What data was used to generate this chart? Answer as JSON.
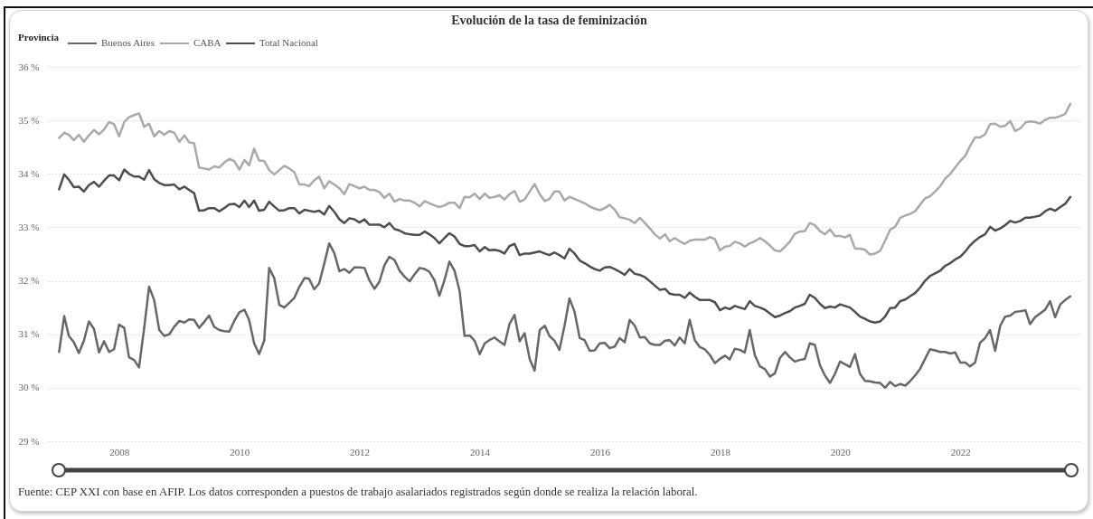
{
  "chart_data": {
    "type": "line",
    "title": "Evolución de la tasa de feminización",
    "legend_title": "Provincia",
    "legend": "top left",
    "grid": "y",
    "annotations": [
      "Fuente: CEP XXI con base en AFIP. Los datos corresponden a puestos de trabajo asalariados registrados según donde se realiza la relación laboral."
    ],
    "xlim": [
      "2006-10-25",
      "2024-01-01"
    ],
    "xticks": [
      "2008",
      "2010",
      "2012",
      "2014",
      "2016",
      "2018",
      "2020",
      "2022"
    ],
    "ylim": [
      29,
      36
    ],
    "yticks": [
      {
        "value": 29,
        "label": "29 %"
      },
      {
        "value": 30,
        "label": "30 %"
      },
      {
        "value": 31,
        "label": "31 %"
      },
      {
        "value": 32,
        "label": "32 %"
      },
      {
        "value": 33,
        "label": "33 %"
      },
      {
        "value": 34,
        "label": "34 %"
      },
      {
        "value": 35,
        "label": "35 %"
      },
      {
        "value": 36,
        "label": "36 %"
      }
    ],
    "x": [
      "2007-01",
      "2007-02",
      "2007-03",
      "2007-04",
      "2007-05",
      "2007-06",
      "2007-07",
      "2007-08",
      "2007-09",
      "2007-10",
      "2007-11",
      "2007-12",
      "2008-01",
      "2008-02",
      "2008-03",
      "2008-04",
      "2008-05",
      "2008-06",
      "2008-07",
      "2008-08",
      "2008-09",
      "2008-10",
      "2008-11",
      "2008-12",
      "2009-01",
      "2009-02",
      "2009-03",
      "2009-04",
      "2009-05",
      "2009-06",
      "2009-07",
      "2009-08",
      "2009-09",
      "2009-10",
      "2009-11",
      "2009-12",
      "2010-01",
      "2010-02",
      "2010-03",
      "2010-04",
      "2010-05",
      "2010-06",
      "2010-07",
      "2010-08",
      "2010-09",
      "2010-10",
      "2010-11",
      "2010-12",
      "2011-01",
      "2011-02",
      "2011-03",
      "2011-04",
      "2011-05",
      "2011-06",
      "2011-07",
      "2011-08",
      "2011-09",
      "2011-10",
      "2011-11",
      "2011-12",
      "2012-01",
      "2012-02",
      "2012-03",
      "2012-04",
      "2012-05",
      "2012-06",
      "2012-07",
      "2012-08",
      "2012-09",
      "2012-10",
      "2012-11",
      "2012-12",
      "2013-01",
      "2013-02",
      "2013-03",
      "2013-04",
      "2013-05",
      "2013-06",
      "2013-07",
      "2013-08",
      "2013-09",
      "2013-10",
      "2013-11",
      "2013-12",
      "2014-01",
      "2014-02",
      "2014-03",
      "2014-04",
      "2014-05",
      "2014-06",
      "2014-07",
      "2014-08",
      "2014-09",
      "2014-10",
      "2014-11",
      "2014-12",
      "2015-01",
      "2015-02",
      "2015-03",
      "2015-04",
      "2015-05",
      "2015-06",
      "2015-07",
      "2015-08",
      "2015-09",
      "2015-10",
      "2015-11",
      "2015-12",
      "2016-01",
      "2016-02",
      "2016-03",
      "2016-04",
      "2016-05",
      "2016-06",
      "2016-07",
      "2016-08",
      "2016-09",
      "2016-10",
      "2016-11",
      "2016-12",
      "2017-01",
      "2017-02",
      "2017-03",
      "2017-04",
      "2017-05",
      "2017-06",
      "2017-07",
      "2017-08",
      "2017-09",
      "2017-10",
      "2017-11",
      "2017-12",
      "2018-01",
      "2018-02",
      "2018-03",
      "2018-04",
      "2018-05",
      "2018-06",
      "2018-07",
      "2018-08",
      "2018-09",
      "2018-10",
      "2018-11",
      "2018-12",
      "2019-01",
      "2019-02",
      "2019-03",
      "2019-04",
      "2019-05",
      "2019-06",
      "2019-07",
      "2019-08",
      "2019-09",
      "2019-10",
      "2019-11",
      "2019-12",
      "2020-01",
      "2020-02",
      "2020-03",
      "2020-04",
      "2020-05",
      "2020-06",
      "2020-07",
      "2020-08",
      "2020-09",
      "2020-10",
      "2020-11",
      "2020-12",
      "2021-01",
      "2021-02",
      "2021-03",
      "2021-04",
      "2021-05",
      "2021-06",
      "2021-07",
      "2021-08",
      "2021-09",
      "2021-10",
      "2021-11",
      "2021-12",
      "2022-01",
      "2022-02",
      "2022-03",
      "2022-04",
      "2022-05",
      "2022-06",
      "2022-07",
      "2022-08",
      "2022-09",
      "2022-10",
      "2022-11",
      "2022-12",
      "2023-01",
      "2023-02",
      "2023-03",
      "2023-04",
      "2023-05",
      "2023-06",
      "2023-07",
      "2023-08",
      "2023-09",
      "2023-10",
      "2023-11"
    ],
    "series": [
      {
        "name": "Buenos Aires",
        "color": "#676767",
        "values": [
          30.67,
          31.34,
          30.97,
          30.85,
          30.65,
          30.88,
          31.24,
          31.1,
          30.66,
          30.87,
          30.67,
          30.72,
          31.18,
          31.12,
          30.57,
          30.52,
          30.38,
          31.11,
          31.89,
          31.64,
          31.08,
          30.97,
          31.0,
          31.14,
          31.25,
          31.22,
          31.28,
          31.27,
          31.12,
          31.23,
          31.35,
          31.14,
          31.08,
          31.06,
          31.05,
          31.25,
          31.41,
          31.46,
          31.27,
          30.83,
          30.63,
          30.88,
          32.24,
          32.05,
          31.55,
          31.5,
          31.59,
          31.68,
          31.89,
          32.05,
          32.04,
          31.84,
          31.95,
          32.32,
          32.7,
          32.52,
          32.18,
          32.22,
          32.15,
          32.25,
          32.25,
          32.24,
          32.01,
          31.85,
          31.98,
          32.29,
          32.45,
          32.39,
          32.19,
          32.08,
          31.99,
          32.12,
          32.24,
          32.22,
          32.17,
          32.01,
          31.72,
          32.01,
          32.36,
          32.19,
          31.81,
          30.97,
          30.98,
          30.88,
          30.63,
          30.83,
          30.89,
          30.94,
          30.87,
          30.8,
          31.19,
          31.36,
          30.87,
          31.02,
          30.54,
          30.32,
          31.08,
          31.16,
          30.97,
          30.88,
          30.71,
          31.16,
          31.67,
          31.42,
          30.93,
          30.89,
          30.69,
          30.7,
          30.83,
          30.84,
          30.74,
          30.77,
          30.93,
          30.85,
          31.27,
          31.16,
          30.94,
          30.95,
          30.83,
          30.8,
          30.8,
          30.88,
          30.89,
          30.79,
          30.94,
          30.83,
          31.27,
          30.89,
          30.76,
          30.72,
          30.61,
          30.46,
          30.54,
          30.6,
          30.53,
          30.73,
          30.71,
          30.66,
          31.08,
          30.61,
          30.4,
          30.35,
          30.21,
          30.27,
          30.56,
          30.67,
          30.57,
          30.49,
          30.52,
          30.54,
          30.83,
          30.8,
          30.42,
          30.23,
          30.09,
          30.26,
          30.49,
          30.44,
          30.39,
          30.63,
          30.26,
          30.13,
          30.12,
          30.1,
          30.09,
          30.0,
          30.11,
          30.03,
          30.07,
          30.04,
          30.12,
          30.23,
          30.35,
          30.54,
          30.72,
          30.7,
          30.67,
          30.67,
          30.64,
          30.66,
          30.47,
          30.47,
          30.4,
          30.47,
          30.84,
          30.93,
          31.08,
          30.69,
          31.16,
          31.33,
          31.35,
          31.42,
          31.43,
          31.45,
          31.19,
          31.32,
          31.39,
          31.46,
          31.62,
          31.32,
          31.56,
          31.64,
          31.71
        ]
      },
      {
        "name": "CABA",
        "color": "#a9a9a9",
        "values": [
          34.67,
          34.77,
          34.73,
          34.63,
          34.73,
          34.6,
          34.72,
          34.82,
          34.74,
          34.83,
          34.97,
          34.93,
          34.7,
          34.97,
          35.06,
          35.1,
          35.13,
          34.88,
          34.94,
          34.7,
          34.8,
          34.73,
          34.8,
          34.77,
          34.6,
          34.72,
          34.59,
          34.57,
          34.12,
          34.1,
          34.08,
          34.14,
          34.12,
          34.21,
          34.28,
          34.24,
          34.08,
          34.26,
          34.16,
          34.47,
          34.25,
          34.24,
          34.07,
          33.99,
          34.07,
          34.15,
          34.1,
          34.03,
          33.8,
          33.8,
          33.77,
          33.88,
          33.95,
          33.73,
          33.86,
          33.8,
          33.73,
          33.62,
          33.81,
          33.77,
          33.73,
          33.76,
          33.7,
          33.7,
          33.66,
          33.55,
          33.63,
          33.48,
          33.53,
          33.5,
          33.5,
          33.46,
          33.39,
          33.49,
          33.45,
          33.41,
          33.38,
          33.41,
          33.46,
          33.46,
          33.36,
          33.57,
          33.56,
          33.63,
          33.53,
          33.63,
          33.55,
          33.57,
          33.6,
          33.52,
          33.62,
          33.68,
          33.48,
          33.52,
          33.67,
          33.81,
          33.62,
          33.49,
          33.53,
          33.67,
          33.67,
          33.5,
          33.57,
          33.53,
          33.49,
          33.45,
          33.39,
          33.35,
          33.32,
          33.36,
          33.42,
          33.33,
          33.19,
          33.17,
          33.14,
          33.08,
          33.18,
          33.08,
          32.98,
          32.87,
          32.79,
          32.87,
          32.74,
          32.8,
          32.74,
          32.69,
          32.75,
          32.77,
          32.77,
          32.77,
          32.82,
          32.78,
          32.57,
          32.64,
          32.65,
          32.73,
          32.7,
          32.64,
          32.7,
          32.74,
          32.8,
          32.74,
          32.66,
          32.57,
          32.55,
          32.64,
          32.73,
          32.88,
          32.92,
          32.93,
          33.08,
          33.04,
          32.93,
          32.87,
          32.96,
          32.84,
          32.84,
          32.81,
          32.86,
          32.6,
          32.6,
          32.58,
          32.49,
          32.51,
          32.56,
          32.75,
          32.96,
          33.01,
          33.18,
          33.22,
          33.25,
          33.3,
          33.42,
          33.54,
          33.58,
          33.67,
          33.77,
          33.91,
          34.0,
          34.12,
          34.24,
          34.34,
          34.52,
          34.68,
          34.68,
          34.74,
          34.93,
          34.94,
          34.88,
          34.9,
          34.99,
          34.8,
          34.85,
          34.96,
          34.98,
          34.97,
          34.94,
          35.01,
          35.05,
          35.05,
          35.08,
          35.12,
          35.31
        ]
      },
      {
        "name": "Total Nacional",
        "color": "#4e4e4e",
        "values": [
          33.71,
          33.99,
          33.89,
          33.75,
          33.76,
          33.67,
          33.79,
          33.85,
          33.76,
          33.87,
          33.97,
          33.97,
          33.88,
          34.08,
          34.0,
          33.95,
          33.95,
          33.89,
          34.07,
          33.9,
          33.83,
          33.79,
          33.79,
          33.8,
          33.71,
          33.76,
          33.7,
          33.64,
          33.31,
          33.32,
          33.36,
          33.36,
          33.3,
          33.36,
          33.43,
          33.44,
          33.38,
          33.5,
          33.38,
          33.5,
          33.31,
          33.33,
          33.48,
          33.39,
          33.31,
          33.32,
          33.36,
          33.36,
          33.26,
          33.33,
          33.31,
          33.29,
          33.31,
          33.24,
          33.4,
          33.29,
          33.15,
          33.08,
          33.17,
          33.15,
          33.09,
          33.15,
          33.05,
          33.05,
          33.05,
          33.0,
          33.08,
          32.97,
          32.94,
          32.89,
          32.87,
          32.86,
          32.86,
          32.92,
          32.87,
          32.8,
          32.7,
          32.8,
          32.89,
          32.83,
          32.69,
          32.65,
          32.65,
          32.67,
          32.55,
          32.63,
          32.57,
          32.58,
          32.56,
          32.51,
          32.65,
          32.69,
          32.48,
          32.51,
          32.51,
          32.53,
          32.55,
          32.51,
          32.48,
          32.53,
          32.48,
          32.42,
          32.6,
          32.51,
          32.38,
          32.33,
          32.27,
          32.22,
          32.19,
          32.25,
          32.26,
          32.22,
          32.17,
          32.11,
          32.22,
          32.13,
          32.11,
          32.07,
          31.99,
          31.91,
          31.83,
          31.85,
          31.76,
          31.74,
          31.74,
          31.68,
          31.78,
          31.7,
          31.64,
          31.64,
          31.64,
          31.6,
          31.45,
          31.5,
          31.47,
          31.53,
          31.5,
          31.47,
          31.62,
          31.53,
          31.5,
          31.46,
          31.39,
          31.32,
          31.35,
          31.4,
          31.43,
          31.5,
          31.53,
          31.57,
          31.74,
          31.68,
          31.57,
          31.49,
          31.52,
          31.5,
          31.56,
          31.53,
          31.5,
          31.42,
          31.33,
          31.29,
          31.24,
          31.22,
          31.24,
          31.33,
          31.49,
          31.5,
          31.62,
          31.65,
          31.71,
          31.77,
          31.87,
          32.0,
          32.09,
          32.14,
          32.19,
          32.28,
          32.33,
          32.4,
          32.45,
          32.55,
          32.66,
          32.75,
          32.82,
          32.87,
          33.01,
          32.94,
          32.98,
          33.04,
          33.12,
          33.09,
          33.12,
          33.18,
          33.18,
          33.2,
          33.22,
          33.3,
          33.35,
          33.31,
          33.38,
          33.44,
          33.57
        ]
      }
    ]
  }
}
